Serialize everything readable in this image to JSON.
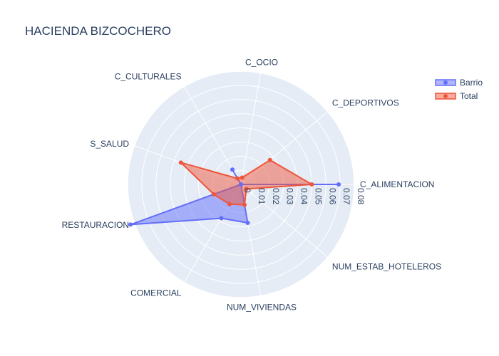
{
  "chart_data": {
    "type": "radar",
    "title": "HACIENDA BIZCOCHERO",
    "categories": [
      "C_ALIMENTACION",
      "C_DEPORTIVOS",
      "C_OCIO",
      "C_CULTURALES",
      "S_SALUD",
      "RESTAURACION",
      "COMERCIAL",
      "NUM_VIVIENDAS",
      "NUM_ESTAB_HOTELEROS"
    ],
    "radial_ticks": [
      "0",
      "0.01",
      "0.02",
      "0.03",
      "0.04",
      "0.05",
      "0.06",
      "0.07",
      "0.08"
    ],
    "rlim": [
      0,
      0.08
    ],
    "series": [
      {
        "name": "Barrio",
        "color": "#636efa",
        "values": [
          0.069,
          0.0,
          0.0,
          0.0121,
          0.0,
          0.0829,
          0.0276,
          0.0276,
          0.0
        ]
      },
      {
        "name": "Total",
        "color": "#ef553b",
        "values": [
          0.05,
          0.0268,
          0.0049,
          0.0049,
          0.0451,
          0.0204,
          0.0161,
          0.0146,
          0.005
        ]
      }
    ],
    "legend_position": "top-right",
    "grid": true
  }
}
